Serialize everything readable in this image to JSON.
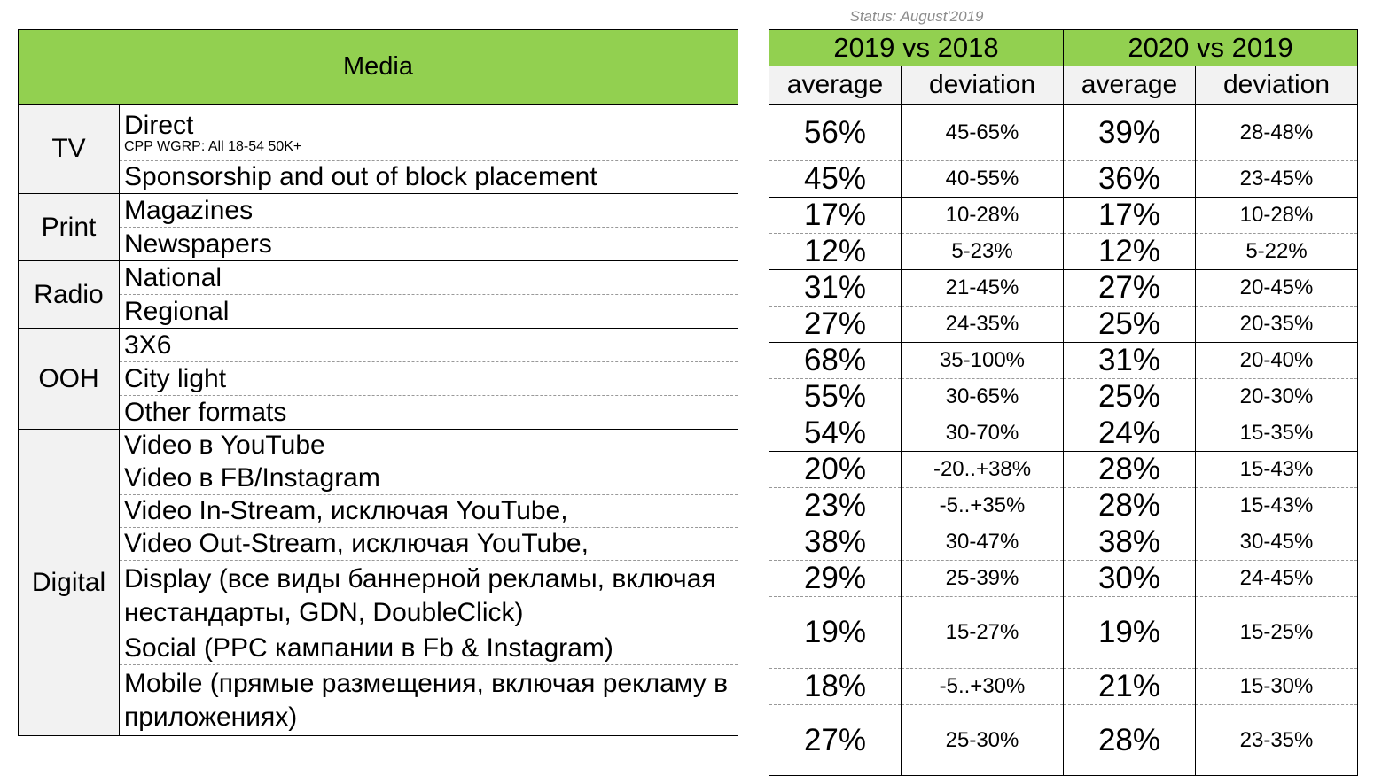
{
  "status": "Status: August'2019",
  "header": {
    "media": "Media",
    "period1": "2019 vs 2018",
    "period2": "2020 vs 2019",
    "average": "average",
    "deviation": "deviation"
  },
  "groups": [
    {
      "name": "TV",
      "items": [
        {
          "label": "Direct",
          "sub": "CPP WGRP: All 18-54 50K+",
          "avg1": "56%",
          "dev1": "45-65%",
          "avg2": "39%",
          "dev2": "28-48%"
        },
        {
          "label": "Sponsorship and out of block placement",
          "avg1": "45%",
          "dev1": "40-55%",
          "avg2": "36%",
          "dev2": "23-45%"
        }
      ]
    },
    {
      "name": "Print",
      "items": [
        {
          "label": "Magazines",
          "avg1": "17%",
          "dev1": "10-28%",
          "avg2": "17%",
          "dev2": "10-28%"
        },
        {
          "label": "Newspapers",
          "avg1": "12%",
          "dev1": "5-23%",
          "avg2": "12%",
          "dev2": "5-22%"
        }
      ]
    },
    {
      "name": "Radio",
      "items": [
        {
          "label": "National",
          "avg1": "31%",
          "dev1": "21-45%",
          "avg2": "27%",
          "dev2": "20-45%"
        },
        {
          "label": "Regional",
          "avg1": "27%",
          "dev1": "24-35%",
          "avg2": "25%",
          "dev2": "20-35%"
        }
      ]
    },
    {
      "name": "OOH",
      "items": [
        {
          "label": "3X6",
          "avg1": "68%",
          "dev1": "35-100%",
          "avg2": "31%",
          "dev2": "20-40%"
        },
        {
          "label": "City light",
          "avg1": "55%",
          "dev1": "30-65%",
          "avg2": "25%",
          "dev2": "20-30%"
        },
        {
          "label": "Other formats",
          "avg1": "54%",
          "dev1": "30-70%",
          "avg2": "24%",
          "dev2": "15-35%"
        }
      ]
    },
    {
      "name": "Digital",
      "items": [
        {
          "label": "Video в YouTube",
          "avg1": "20%",
          "dev1": "-20..+38%",
          "avg2": "28%",
          "dev2": "15-43%"
        },
        {
          "label": "Video в FB/Instagram",
          "avg1": "23%",
          "dev1": "-5..+35%",
          "avg2": "28%",
          "dev2": "15-43%"
        },
        {
          "label": "Video In-Stream, исключая YouTube,",
          "avg1": "38%",
          "dev1": "30-47%",
          "avg2": "38%",
          "dev2": "30-45%"
        },
        {
          "label": "Video Out-Stream, исключая YouTube,",
          "avg1": "29%",
          "dev1": "25-39%",
          "avg2": "30%",
          "dev2": "24-45%"
        },
        {
          "label": "Display (все виды баннерной рекламы, включая нестандарты, GDN, DoubleClick)",
          "avg1": "19%",
          "dev1": "15-27%",
          "avg2": "19%",
          "dev2": "15-25%"
        },
        {
          "label": "Social (PPC кампании в Fb & Instagram)",
          "avg1": "18%",
          "dev1": "-5..+30%",
          "avg2": "21%",
          "dev2": "15-30%"
        },
        {
          "label": "Mobile (прямые размещения, включая рекламу в приложениях)",
          "avg1": "27%",
          "dev1": "25-30%",
          "avg2": "28%",
          "dev2": "23-35%"
        }
      ]
    }
  ]
}
